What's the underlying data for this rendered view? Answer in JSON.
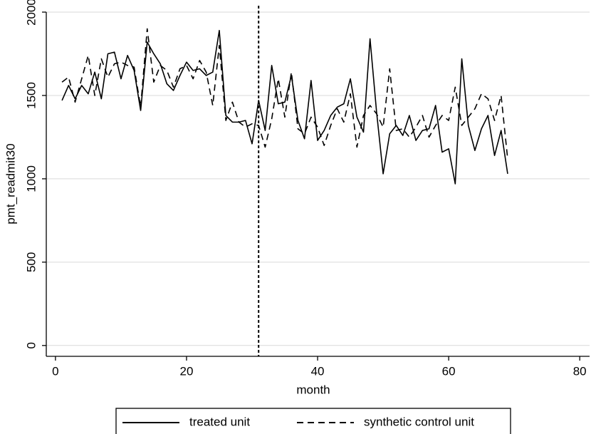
{
  "chart_data": {
    "type": "line",
    "x_label": "month",
    "y_label": "pmt_readmit30",
    "x": [
      1,
      2,
      3,
      4,
      5,
      6,
      7,
      8,
      9,
      10,
      11,
      12,
      13,
      14,
      15,
      16,
      17,
      18,
      19,
      20,
      21,
      22,
      23,
      24,
      25,
      26,
      27,
      28,
      29,
      30,
      31,
      32,
      33,
      34,
      35,
      36,
      37,
      38,
      39,
      40,
      41,
      42,
      43,
      44,
      45,
      46,
      47,
      48,
      49,
      50,
      51,
      52,
      53,
      54,
      55,
      56,
      57,
      58,
      59,
      60,
      61,
      62,
      63,
      64,
      65,
      66,
      67,
      68,
      69
    ],
    "series": [
      {
        "name": "treated unit",
        "color": "#000000",
        "dash": "solid",
        "values": [
          1470,
          1560,
          1480,
          1560,
          1510,
          1640,
          1480,
          1750,
          1760,
          1600,
          1740,
          1650,
          1410,
          1820,
          1750,
          1690,
          1570,
          1530,
          1620,
          1700,
          1650,
          1660,
          1620,
          1640,
          1890,
          1380,
          1340,
          1340,
          1350,
          1210,
          1470,
          1290,
          1680,
          1450,
          1460,
          1620,
          1350,
          1240,
          1590,
          1230,
          1290,
          1380,
          1430,
          1450,
          1600,
          1370,
          1280,
          1840,
          1400,
          1030,
          1270,
          1320,
          1260,
          1380,
          1230,
          1290,
          1300,
          1440,
          1160,
          1180,
          970,
          1720,
          1320,
          1170,
          1300,
          1380,
          1140,
          1290,
          1030
        ]
      },
      {
        "name": "synthetic control unit",
        "color": "#000000",
        "dash": "dashed",
        "values": [
          1580,
          1610,
          1460,
          1600,
          1740,
          1500,
          1720,
          1610,
          1690,
          1700,
          1680,
          1670,
          1430,
          1900,
          1580,
          1680,
          1650,
          1550,
          1660,
          1680,
          1600,
          1710,
          1640,
          1440,
          1800,
          1350,
          1460,
          1340,
          1310,
          1330,
          1320,
          1190,
          1360,
          1600,
          1370,
          1640,
          1300,
          1270,
          1370,
          1310,
          1200,
          1320,
          1420,
          1340,
          1510,
          1190,
          1380,
          1440,
          1390,
          1310,
          1660,
          1290,
          1300,
          1250,
          1310,
          1380,
          1250,
          1320,
          1380,
          1350,
          1550,
          1320,
          1370,
          1420,
          1510,
          1480,
          1350,
          1500,
          1120
        ]
      }
    ],
    "vline": 31,
    "xlim": [
      -1.4,
      81.5
    ],
    "xticks": [
      0,
      20,
      40,
      60,
      80
    ],
    "ylim": [
      -65,
      2000
    ],
    "yticks": [
      0,
      500,
      1000,
      1500,
      2000
    ],
    "grid": true,
    "legend": "bottom"
  }
}
